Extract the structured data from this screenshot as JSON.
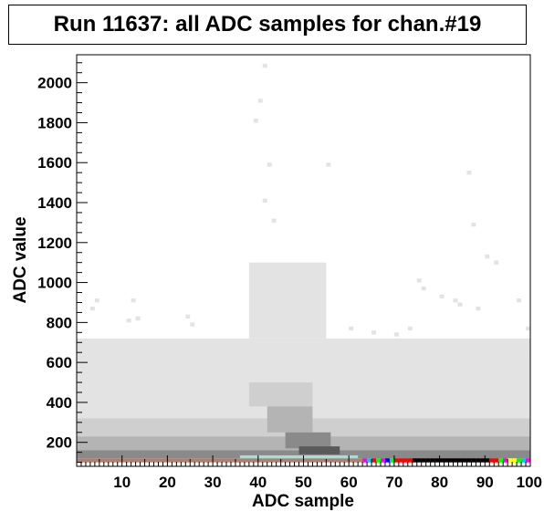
{
  "chart_data": {
    "type": "heatmap",
    "title": "Run 11637: all ADC samples for chan.#19",
    "xlabel": "ADC sample",
    "ylabel": "ADC value",
    "xlim": [
      0,
      100
    ],
    "ylim": [
      80,
      2140
    ],
    "x_ticks": [
      10,
      20,
      30,
      40,
      50,
      60,
      70,
      80,
      90,
      100
    ],
    "y_ticks": [
      200,
      400,
      600,
      800,
      1000,
      1200,
      1400,
      1600,
      1800,
      2000
    ],
    "grid": false,
    "colors": {
      "light": "#e3e3e3",
      "mid": "#cfcfcf",
      "midDark": "#b4b4b4",
      "dark": "#8a8a8a",
      "darker": "#5a5a5a",
      "baseline": "#b07f70",
      "baselineDark": "#7a6a66",
      "cyan": "#9fe0d8",
      "sparse": "#ffffff"
    },
    "bands": [
      {
        "x": [
          0,
          100
        ],
        "y": [
          660,
          720
        ],
        "level": "light"
      },
      {
        "x": [
          0,
          100
        ],
        "y": [
          320,
          660
        ],
        "level": "light"
      },
      {
        "x": [
          0,
          100
        ],
        "y": [
          230,
          320
        ],
        "level": "mid"
      },
      {
        "x": [
          0,
          100
        ],
        "y": [
          160,
          230
        ],
        "level": "midDark"
      },
      {
        "x": [
          0,
          100
        ],
        "y": [
          120,
          160
        ],
        "level": "dark"
      },
      {
        "x": [
          0,
          100
        ],
        "y": [
          100,
          120
        ],
        "level": "baseline"
      }
    ],
    "peak_region": [
      {
        "x": [
          38,
          55
        ],
        "y": [
          720,
          1100
        ],
        "level": "light"
      },
      {
        "x": [
          38,
          52
        ],
        "y": [
          380,
          500
        ],
        "level": "mid"
      },
      {
        "x": [
          42,
          52
        ],
        "y": [
          250,
          380
        ],
        "level": "midDark"
      },
      {
        "x": [
          46,
          56
        ],
        "y": [
          170,
          250
        ],
        "level": "dark"
      },
      {
        "x": [
          49,
          58
        ],
        "y": [
          140,
          180
        ],
        "level": "darker"
      }
    ],
    "outliers": [
      [
        41,
        2075
      ],
      [
        40,
        1900
      ],
      [
        39,
        1800
      ],
      [
        42,
        1580
      ],
      [
        55,
        1580
      ],
      [
        86,
        1540
      ],
      [
        41,
        1400
      ],
      [
        43,
        1300
      ],
      [
        87,
        1280
      ],
      [
        90,
        1120
      ],
      [
        92,
        1090
      ],
      [
        75,
        1000
      ],
      [
        76,
        960
      ],
      [
        80,
        920
      ],
      [
        83,
        900
      ],
      [
        84,
        880
      ],
      [
        88,
        860
      ],
      [
        97,
        900
      ],
      [
        12,
        900
      ],
      [
        4,
        900
      ],
      [
        3,
        860
      ],
      [
        11,
        800
      ],
      [
        13,
        810
      ],
      [
        24,
        820
      ],
      [
        25,
        780
      ],
      [
        99,
        760
      ],
      [
        60,
        760
      ],
      [
        65,
        740
      ],
      [
        70,
        730
      ],
      [
        73,
        760
      ]
    ],
    "baseline_colored_cells": [
      {
        "x": 63,
        "color": "#ff00ff"
      },
      {
        "x": 64,
        "color": "#00c8ff"
      },
      {
        "x": 65,
        "color": "#ff0000"
      },
      {
        "x": 66,
        "color": "#00ff00"
      },
      {
        "x": 67,
        "color": "#ff00ff"
      },
      {
        "x": 68,
        "color": "#0000ff"
      },
      {
        "x": 69,
        "color": "#00ff00"
      },
      {
        "x": 70,
        "color": "#ff0000"
      },
      {
        "x": 71,
        "color": "#ff0000"
      },
      {
        "x": 72,
        "color": "#ff0000"
      },
      {
        "x": 73,
        "color": "#ff0000"
      },
      {
        "x": 74,
        "color": "#000000"
      },
      {
        "x": 75,
        "color": "#000000"
      },
      {
        "x": 76,
        "color": "#000000"
      },
      {
        "x": 77,
        "color": "#000000"
      },
      {
        "x": 78,
        "color": "#000000"
      },
      {
        "x": 79,
        "color": "#000000"
      },
      {
        "x": 80,
        "color": "#000000"
      },
      {
        "x": 81,
        "color": "#000000"
      },
      {
        "x": 82,
        "color": "#000000"
      },
      {
        "x": 83,
        "color": "#000000"
      },
      {
        "x": 84,
        "color": "#000000"
      },
      {
        "x": 85,
        "color": "#000000"
      },
      {
        "x": 86,
        "color": "#000000"
      },
      {
        "x": 87,
        "color": "#000000"
      },
      {
        "x": 88,
        "color": "#000000"
      },
      {
        "x": 89,
        "color": "#000000"
      },
      {
        "x": 90,
        "color": "#000000"
      },
      {
        "x": 91,
        "color": "#ff0000"
      },
      {
        "x": 92,
        "color": "#ff0000"
      },
      {
        "x": 93,
        "color": "#00ff00"
      },
      {
        "x": 94,
        "color": "#ff00ff"
      },
      {
        "x": 95,
        "color": "#ffff00"
      },
      {
        "x": 96,
        "color": "#ffff00"
      },
      {
        "x": 97,
        "color": "#00ff00"
      },
      {
        "x": 98,
        "color": "#00c8ff"
      },
      {
        "x": 99,
        "color": "#ff00ff"
      }
    ]
  }
}
